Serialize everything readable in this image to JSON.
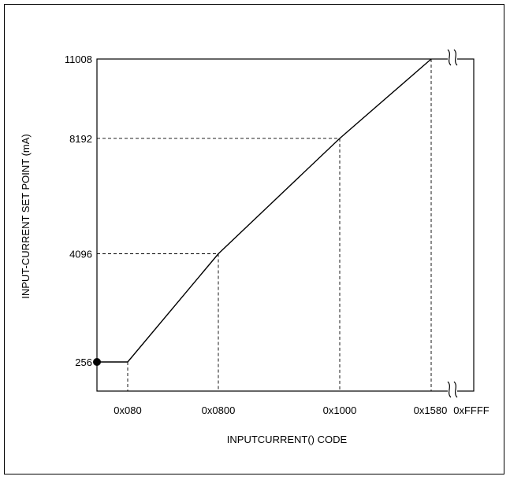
{
  "chart_data": {
    "type": "line",
    "title": "",
    "xlabel": "INPUTCURRENT() CODE",
    "ylabel": "INPUT-CURRENT SET POINT (mA)",
    "x_tick_labels": [
      "0x080",
      "0x0800",
      "0x1000",
      "0x1580",
      "0xFFFF"
    ],
    "y_tick_labels": [
      "256",
      "4096",
      "8192",
      "11008"
    ],
    "series": [
      {
        "points": [
          {
            "x": "0x0000",
            "y": 256
          },
          {
            "x": "0x080",
            "y": 256
          },
          {
            "x": "0x0800",
            "y": 4096
          },
          {
            "x": "0x1000",
            "y": 8192
          },
          {
            "x": "0x1580",
            "y": 11008
          }
        ]
      }
    ],
    "reference_lines": [
      {
        "x": "0x080",
        "y": 256
      },
      {
        "x": "0x0800",
        "y": 4096
      },
      {
        "x": "0x1000",
        "y": 8192
      },
      {
        "x": "0x1580",
        "y": 11008
      }
    ],
    "start_marker": {
      "x": "0x0000",
      "y": 256
    },
    "axis_break_after": "0x1580",
    "grid": false,
    "colors": {
      "line": "#000000",
      "background": "#ffffff"
    }
  }
}
